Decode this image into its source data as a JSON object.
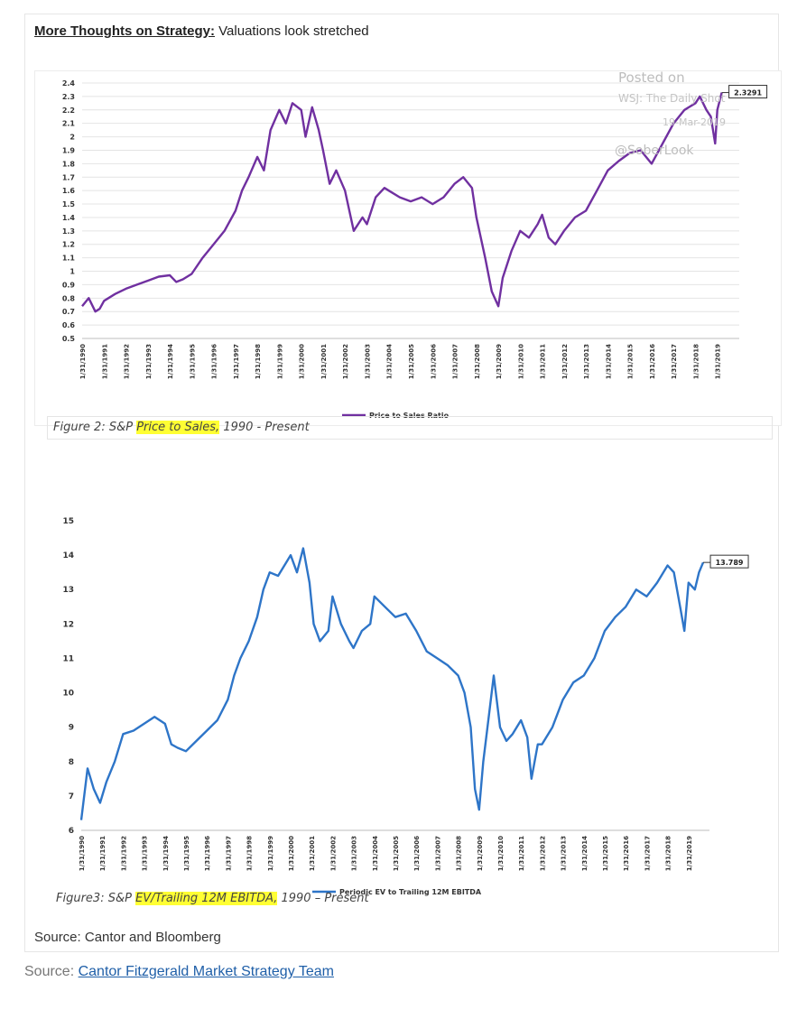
{
  "page": {
    "title_bold": "More Thoughts on Strategy:",
    "title_rest": " Valuations look stretched",
    "source_cantor": "Source: Cantor and Bloomberg",
    "source_prefix": "Source: ",
    "source_link": "Cantor Fitzgerald Market Strategy Team"
  },
  "figure2": {
    "caption_pre": "Figure 2: S&P ",
    "caption_highlight": "Price to Sales,",
    "caption_post": " 1990 - Present",
    "watermark": [
      "Posted on",
      "WSJ: The Daily Shot",
      "19-Mar-2019",
      "@SoberLook"
    ],
    "last_label": "2.3291"
  },
  "figure3": {
    "caption_pre": "Figure3: S&P ",
    "caption_highlight": "EV/Trailing 12M EBITDA,",
    "caption_post": " 1990 – Present",
    "last_label": "13.789"
  },
  "colors": {
    "ps_line": "#7030a0",
    "ev_line": "#2e75c8",
    "highlight": "#ffff33",
    "link": "#1f5fa8"
  },
  "chart_data": [
    {
      "type": "line",
      "title": "",
      "xlabel": "",
      "ylabel": "",
      "ylim": [
        0.5,
        2.4
      ],
      "yticks": [
        "0.5",
        "0.6",
        "0.7",
        "0.8",
        "0.9",
        "1",
        "1.1",
        "1.2",
        "1.3",
        "1.4",
        "1.5",
        "1.6",
        "1.7",
        "1.8",
        "1.9",
        "2",
        "2.1",
        "2.2",
        "2.3",
        "2.4"
      ],
      "x_ticks": [
        "1/31/1990",
        "1/31/1991",
        "1/31/1992",
        "1/31/1993",
        "1/31/1994",
        "1/31/1995",
        "1/31/1996",
        "1/31/1997",
        "1/31/1998",
        "1/31/1999",
        "1/31/2000",
        "1/31/2001",
        "1/31/2002",
        "1/31/2003",
        "1/31/2004",
        "1/31/2005",
        "1/31/2006",
        "1/31/2007",
        "1/31/2008",
        "1/31/2009",
        "1/31/2010",
        "1/31/2011",
        "1/31/2012",
        "1/31/2013",
        "1/31/2014",
        "1/31/2015",
        "1/31/2016",
        "1/31/2017",
        "1/31/2018",
        "1/31/2019"
      ],
      "grid": true,
      "legend": "bottom-center",
      "series": [
        {
          "name": "Price to Sales Ratio",
          "x": [
            1990.0,
            1990.3,
            1990.6,
            1990.8,
            1991.0,
            1991.5,
            1992.0,
            1992.5,
            1993.0,
            1993.5,
            1994.0,
            1994.3,
            1994.6,
            1995.0,
            1995.5,
            1996.0,
            1996.5,
            1997.0,
            1997.3,
            1997.6,
            1998.0,
            1998.3,
            1998.6,
            1999.0,
            1999.3,
            1999.6,
            2000.0,
            2000.2,
            2000.5,
            2000.8,
            2001.0,
            2001.3,
            2001.6,
            2002.0,
            2002.4,
            2002.8,
            2003.0,
            2003.4,
            2003.8,
            2004.0,
            2004.5,
            2005.0,
            2005.5,
            2006.0,
            2006.5,
            2007.0,
            2007.4,
            2007.8,
            2008.0,
            2008.4,
            2008.7,
            2009.0,
            2009.2,
            2009.6,
            2010.0,
            2010.4,
            2010.8,
            2011.0,
            2011.3,
            2011.6,
            2012.0,
            2012.5,
            2013.0,
            2013.5,
            2014.0,
            2014.5,
            2015.0,
            2015.5,
            2016.0,
            2016.5,
            2017.0,
            2017.5,
            2018.0,
            2018.2,
            2018.5,
            2018.7,
            2018.9,
            2019.0,
            2019.2
          ],
          "values": [
            0.74,
            0.8,
            0.7,
            0.72,
            0.78,
            0.83,
            0.87,
            0.9,
            0.93,
            0.96,
            0.97,
            0.92,
            0.94,
            0.98,
            1.1,
            1.2,
            1.3,
            1.45,
            1.6,
            1.7,
            1.85,
            1.75,
            2.05,
            2.2,
            2.1,
            2.25,
            2.2,
            2.0,
            2.22,
            2.05,
            1.9,
            1.65,
            1.75,
            1.6,
            1.3,
            1.4,
            1.35,
            1.55,
            1.62,
            1.6,
            1.55,
            1.52,
            1.55,
            1.5,
            1.55,
            1.65,
            1.7,
            1.62,
            1.4,
            1.1,
            0.85,
            0.74,
            0.95,
            1.15,
            1.3,
            1.25,
            1.35,
            1.42,
            1.25,
            1.2,
            1.3,
            1.4,
            1.45,
            1.6,
            1.75,
            1.82,
            1.88,
            1.9,
            1.8,
            1.95,
            2.1,
            2.2,
            2.25,
            2.3,
            2.2,
            2.15,
            1.95,
            2.2,
            2.3291
          ]
        }
      ]
    },
    {
      "type": "line",
      "title": "",
      "xlabel": "",
      "ylabel": "",
      "ylim": [
        6,
        15
      ],
      "yticks": [
        "6",
        "7",
        "8",
        "9",
        "10",
        "11",
        "12",
        "13",
        "14",
        "15"
      ],
      "x_ticks": [
        "1/31/1990",
        "1/31/1991",
        "1/31/1992",
        "1/31/1993",
        "1/31/1994",
        "1/31/1995",
        "1/31/1996",
        "1/31/1997",
        "1/31/1998",
        "1/31/1999",
        "1/31/2000",
        "1/31/2001",
        "1/31/2002",
        "1/31/2003",
        "1/31/2004",
        "1/31/2005",
        "1/31/2006",
        "1/31/2007",
        "1/31/2008",
        "1/31/2009",
        "1/31/2010",
        "1/31/2011",
        "1/31/2012",
        "1/31/2013",
        "1/31/2014",
        "1/31/2015",
        "1/31/2016",
        "1/31/2017",
        "1/31/2018",
        "1/31/2019"
      ],
      "grid": false,
      "legend": "bottom-center",
      "series": [
        {
          "name": "Periodic EV to Trailing 12M EBITDA",
          "x": [
            1990.0,
            1990.3,
            1990.6,
            1990.9,
            1991.2,
            1991.6,
            1992.0,
            1992.5,
            1993.0,
            1993.5,
            1994.0,
            1994.3,
            1994.6,
            1995.0,
            1995.5,
            1996.0,
            1996.5,
            1997.0,
            1997.3,
            1997.6,
            1998.0,
            1998.4,
            1998.7,
            1999.0,
            1999.4,
            1999.8,
            2000.0,
            2000.3,
            2000.6,
            2000.9,
            2001.1,
            2001.4,
            2001.8,
            2002.0,
            2002.4,
            2002.8,
            2003.0,
            2003.4,
            2003.8,
            2004.0,
            2004.5,
            2005.0,
            2005.5,
            2006.0,
            2006.5,
            2007.0,
            2007.5,
            2008.0,
            2008.3,
            2008.6,
            2008.8,
            2009.0,
            2009.2,
            2009.5,
            2009.7,
            2010.0,
            2010.3,
            2010.6,
            2011.0,
            2011.3,
            2011.5,
            2011.8,
            2012.0,
            2012.5,
            2013.0,
            2013.5,
            2014.0,
            2014.5,
            2015.0,
            2015.5,
            2016.0,
            2016.5,
            2017.0,
            2017.5,
            2018.0,
            2018.3,
            2018.6,
            2018.8,
            2019.0,
            2019.3,
            2019.5,
            2019.7
          ],
          "values": [
            6.3,
            7.8,
            7.2,
            6.8,
            7.4,
            8.0,
            8.8,
            8.9,
            9.1,
            9.3,
            9.1,
            8.5,
            8.4,
            8.3,
            8.6,
            8.9,
            9.2,
            9.8,
            10.5,
            11.0,
            11.5,
            12.2,
            13.0,
            13.5,
            13.4,
            13.8,
            14.0,
            13.5,
            14.2,
            13.2,
            12.0,
            11.5,
            11.8,
            12.8,
            12.0,
            11.5,
            11.3,
            11.8,
            12.0,
            12.8,
            12.5,
            12.2,
            12.3,
            11.8,
            11.2,
            11.0,
            10.8,
            10.5,
            10.0,
            9.0,
            7.2,
            6.6,
            8.0,
            9.5,
            10.5,
            9.0,
            8.6,
            8.8,
            9.2,
            8.7,
            7.5,
            8.5,
            8.5,
            9.0,
            9.8,
            10.3,
            10.5,
            11.0,
            11.8,
            12.2,
            12.5,
            13.0,
            12.8,
            13.2,
            13.7,
            13.5,
            12.5,
            11.8,
            13.2,
            13.0,
            13.5,
            13.789
          ]
        }
      ]
    }
  ]
}
